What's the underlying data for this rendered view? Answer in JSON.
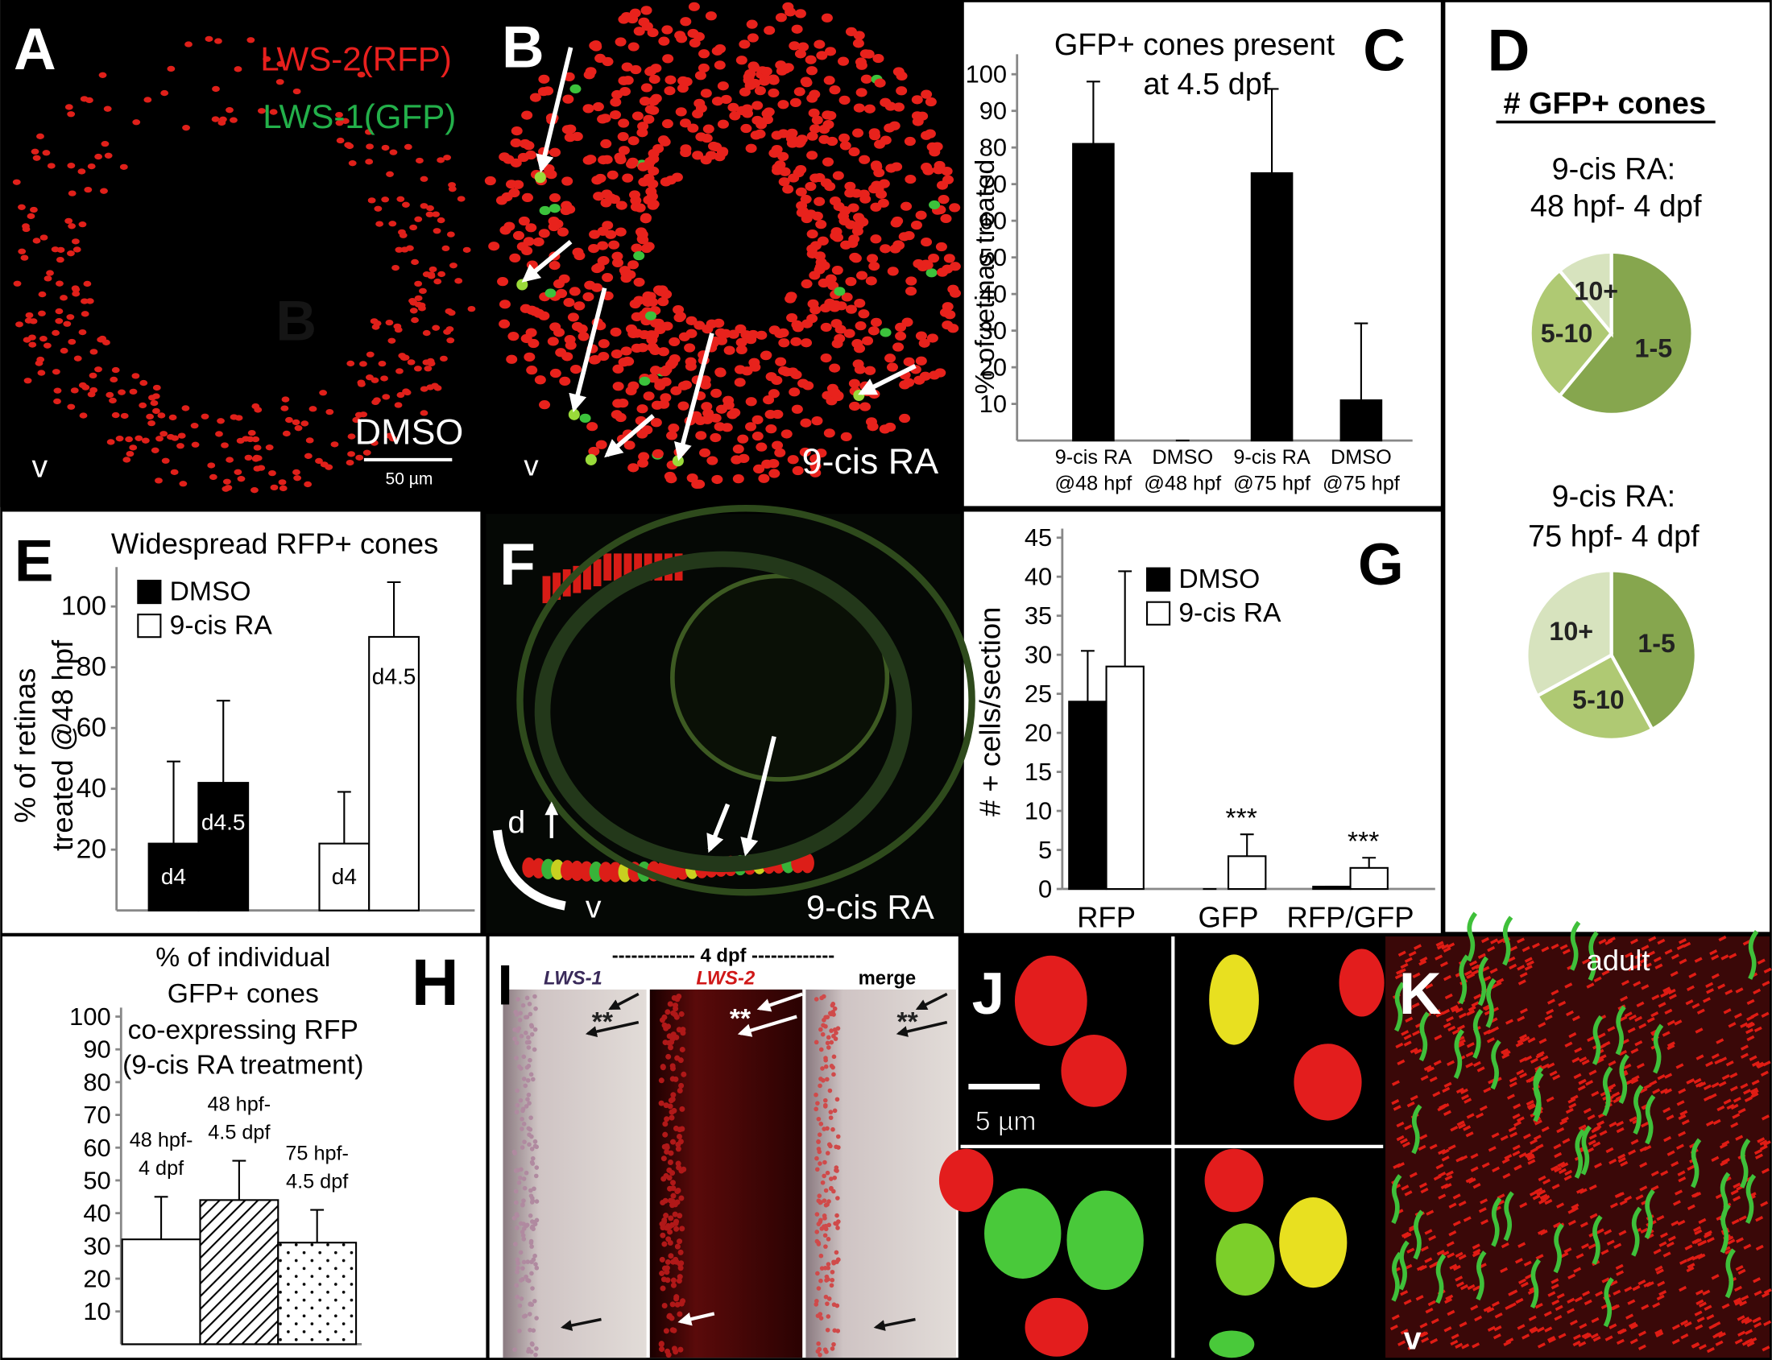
{
  "chart_data": [
    {
      "type": "bar",
      "panel_label": "C",
      "title": [
        "GFP+ cones present",
        "at 4.5 dpf"
      ],
      "y_label": "% of retinas treated",
      "categories": [
        [
          "9-cis RA",
          "@48 hpf"
        ],
        [
          "DMSO",
          "@48 hpf"
        ],
        [
          "9-cis RA",
          "@75 hpf"
        ],
        [
          "DMSO",
          "@75 hpf"
        ]
      ],
      "values": [
        81,
        0,
        73,
        11
      ],
      "errors": [
        17,
        0,
        23,
        21
      ],
      "color": "#000000",
      "ylim": [
        0,
        103
      ],
      "yticks": [
        10,
        20,
        30,
        40,
        50,
        60,
        70,
        80,
        90,
        100
      ]
    },
    {
      "type": "pie",
      "panel_label": "D",
      "title": "# GFP+ cones",
      "pies": [
        {
          "subtitle": [
            "9-cis RA:",
            "48 hpf- 4 dpf"
          ],
          "categories": [
            "1-5",
            "5-10",
            "10+"
          ],
          "values": [
            61,
            28,
            11
          ],
          "colors": [
            "#86a64e",
            "#afc973",
            "#d7e3be"
          ]
        },
        {
          "subtitle": [
            "9-cis RA:",
            "75 hpf- 4 dpf"
          ],
          "categories": [
            "1-5",
            "5-10",
            "10+"
          ],
          "values": [
            42,
            25,
            33
          ],
          "colors": [
            "#86a64e",
            "#afc973",
            "#d7e3be"
          ]
        }
      ]
    },
    {
      "type": "bar",
      "panel_label": "E",
      "title": "Widespread RFP+ cones",
      "y_label": [
        "% of retinas",
        "treated @48 hpf"
      ],
      "categories": [
        "d4",
        "d4.5"
      ],
      "series": [
        {
          "name": "DMSO",
          "color": "#000000",
          "values": [
            22,
            42
          ],
          "errors": [
            27,
            27
          ]
        },
        {
          "name": "9-cis RA",
          "color": "#ffffff",
          "values": [
            22,
            90
          ],
          "errors": [
            17,
            18
          ]
        }
      ],
      "ylim": [
        0,
        110
      ],
      "yticks": [
        20,
        40,
        60,
        80,
        100
      ]
    },
    {
      "type": "bar",
      "panel_label": "G",
      "y_label": "# + cells/section",
      "categories": [
        "RFP",
        "GFP",
        "RFP/GFP"
      ],
      "series": [
        {
          "name": "DMSO",
          "color": "#000000",
          "values": [
            24,
            0,
            0.3
          ],
          "errors": [
            6.5,
            0,
            0
          ]
        },
        {
          "name": "9-cis RA",
          "color": "#ffffff",
          "values": [
            28.5,
            4.2,
            2.7
          ],
          "errors": [
            12.2,
            2.8,
            1.3
          ]
        }
      ],
      "annotations": [
        null,
        "***",
        "***"
      ],
      "ylim": [
        0,
        45
      ],
      "yticks": [
        0,
        5,
        10,
        15,
        20,
        25,
        30,
        35,
        40,
        45
      ]
    },
    {
      "type": "bar",
      "panel_label": "H",
      "title": [
        "% of individual",
        "GFP+ cones",
        "co-expressing RFP",
        "(9-cis RA treatment)"
      ],
      "categories": [
        [
          "48 hpf-",
          "4 dpf"
        ],
        [
          "48 hpf-",
          "4.5 dpf"
        ],
        [
          "75 hpf-",
          "4.5 dpf"
        ]
      ],
      "values": [
        32,
        44,
        31
      ],
      "errors": [
        13,
        12,
        10
      ],
      "color": "#ffffff",
      "patterns": [
        "solid",
        "diagonal-hatch",
        "dots"
      ],
      "ylim": [
        0,
        100
      ],
      "yticks": [
        10,
        20,
        30,
        40,
        50,
        60,
        70,
        80,
        90,
        100
      ]
    }
  ],
  "images": {
    "A": {
      "label": "A",
      "legend": [
        "LWS-2(RFP)",
        "LWS-1(GFP)"
      ],
      "treatment": "DMSO",
      "scale_bar": "50 µm",
      "orientation": "v",
      "inset_label": "B"
    },
    "B": {
      "label": "B",
      "orientation": "v",
      "treatment": "9-cis RA"
    },
    "F": {
      "label": "F",
      "dorsal": "d",
      "ventral": "v",
      "treatment": "9-cis RA"
    },
    "I": {
      "label": "I",
      "header": "------------- 4 dpf -------------",
      "columns": [
        "LWS-1",
        "LWS-2",
        "merge"
      ],
      "marks": [
        "**",
        "**",
        "**"
      ]
    },
    "J": {
      "label": "J",
      "scale_bar": "5 µm"
    },
    "K": {
      "label": "K",
      "stage": "adult",
      "orientation": "v"
    }
  }
}
